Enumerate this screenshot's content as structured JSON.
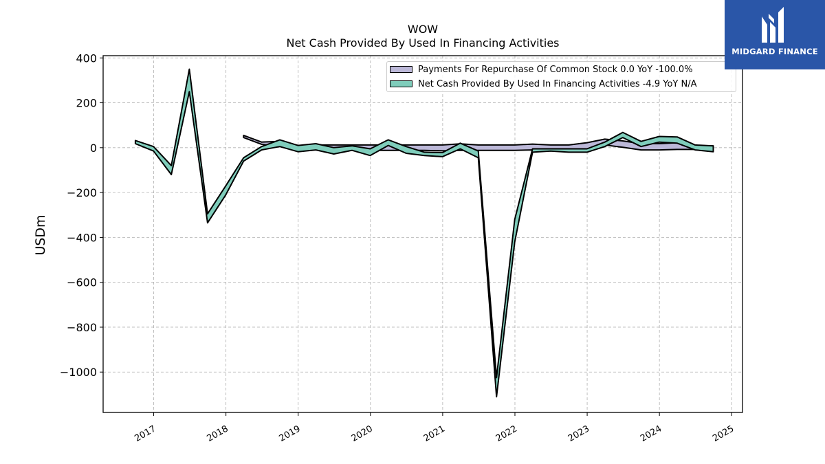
{
  "chart_data": {
    "type": "line",
    "title": "WOW",
    "subtitle": "Net Cash Provided By Used In Financing Activities",
    "ylabel": "USDm",
    "xlabel": "",
    "ylim": [
      -1180,
      410
    ],
    "xlim": [
      2016.3,
      2025.15
    ],
    "yticks": [
      400,
      200,
      0,
      -200,
      -400,
      -600,
      -800,
      -1000
    ],
    "ytick_labels": [
      "400",
      "200",
      "0",
      "−200",
      "−400",
      "−600",
      "−800",
      "−1000"
    ],
    "xticks": [
      2017,
      2018,
      2019,
      2020,
      2021,
      2022,
      2023,
      2024,
      2025
    ],
    "xtick_labels": [
      "2017",
      "2018",
      "2019",
      "2020",
      "2021",
      "2022",
      "2023",
      "2024",
      "2025"
    ],
    "grid": true,
    "legend_position": "top-right",
    "series": [
      {
        "name": "Payments For Repurchase Of Common Stock",
        "legend_label": "Payments For Repurchase Of Common Stock  0.0 YoY -100.0%",
        "color": "#bcb8d8",
        "x": [
          "2018-03-31",
          "2018-06-30",
          "2018-09-30",
          "2018-12-31",
          "2019-03-31",
          "2019-06-30",
          "2019-09-30",
          "2019-12-31",
          "2020-03-31",
          "2020-06-30",
          "2020-09-30",
          "2020-12-31",
          "2021-03-31",
          "2021-06-30",
          "2021-09-30",
          "2021-12-31",
          "2022-03-31",
          "2022-06-30",
          "2022-09-30",
          "2022-12-31",
          "2023-03-31",
          "2023-06-30",
          "2023-09-30",
          "2023-12-31",
          "2024-03-31",
          "2024-06-30",
          "2024-09-30"
        ],
        "upper": [
          55,
          25,
          28,
          10,
          12,
          12,
          12,
          12,
          12,
          12,
          12,
          12,
          17,
          12,
          12,
          12,
          16,
          12,
          12,
          22,
          38,
          30,
          18,
          18,
          22,
          10,
          8
        ],
        "lower": [
          45,
          15,
          5,
          -12,
          -8,
          -10,
          -10,
          -12,
          -12,
          -12,
          -12,
          -14,
          -12,
          -12,
          -12,
          -12,
          -10,
          -12,
          -10,
          -8,
          12,
          2,
          -10,
          -10,
          -8,
          -8,
          -5
        ]
      },
      {
        "name": "Net Cash Provided By Used In Financing Activities",
        "legend_label": "Net Cash Provided By Used In Financing Activities  -4.9 YoY N/A",
        "color": "#7fcdbb",
        "x": [
          "2016-09-30",
          "2016-12-31",
          "2017-03-31",
          "2017-06-30",
          "2017-09-30",
          "2017-12-31",
          "2018-03-31",
          "2018-06-30",
          "2018-09-30",
          "2018-12-31",
          "2019-03-31",
          "2019-06-30",
          "2019-09-30",
          "2019-12-31",
          "2020-03-31",
          "2020-06-30",
          "2020-09-30",
          "2020-12-31",
          "2021-03-31",
          "2021-06-30",
          "2021-09-30",
          "2021-12-31",
          "2022-03-31",
          "2022-06-30",
          "2022-09-30",
          "2022-12-31",
          "2023-03-31",
          "2023-06-30",
          "2023-09-30",
          "2023-12-31",
          "2024-03-31",
          "2024-06-30",
          "2024-09-30"
        ],
        "upper": [
          32,
          5,
          -80,
          350,
          -295,
          -170,
          -45,
          5,
          35,
          10,
          18,
          0,
          8,
          -5,
          35,
          5,
          -20,
          -22,
          20,
          -15,
          -1025,
          -320,
          -5,
          -5,
          -5,
          -5,
          25,
          68,
          28,
          50,
          48,
          12,
          8
        ],
        "lower": [
          18,
          -15,
          -120,
          250,
          -335,
          -210,
          -60,
          -10,
          5,
          -18,
          -10,
          -28,
          -12,
          -35,
          10,
          -25,
          -35,
          -40,
          -5,
          -45,
          -1110,
          -420,
          -20,
          -15,
          -20,
          -20,
          5,
          45,
          5,
          25,
          20,
          -10,
          -18
        ]
      }
    ]
  },
  "logo": {
    "text": "MIDGARD FINANCE"
  }
}
